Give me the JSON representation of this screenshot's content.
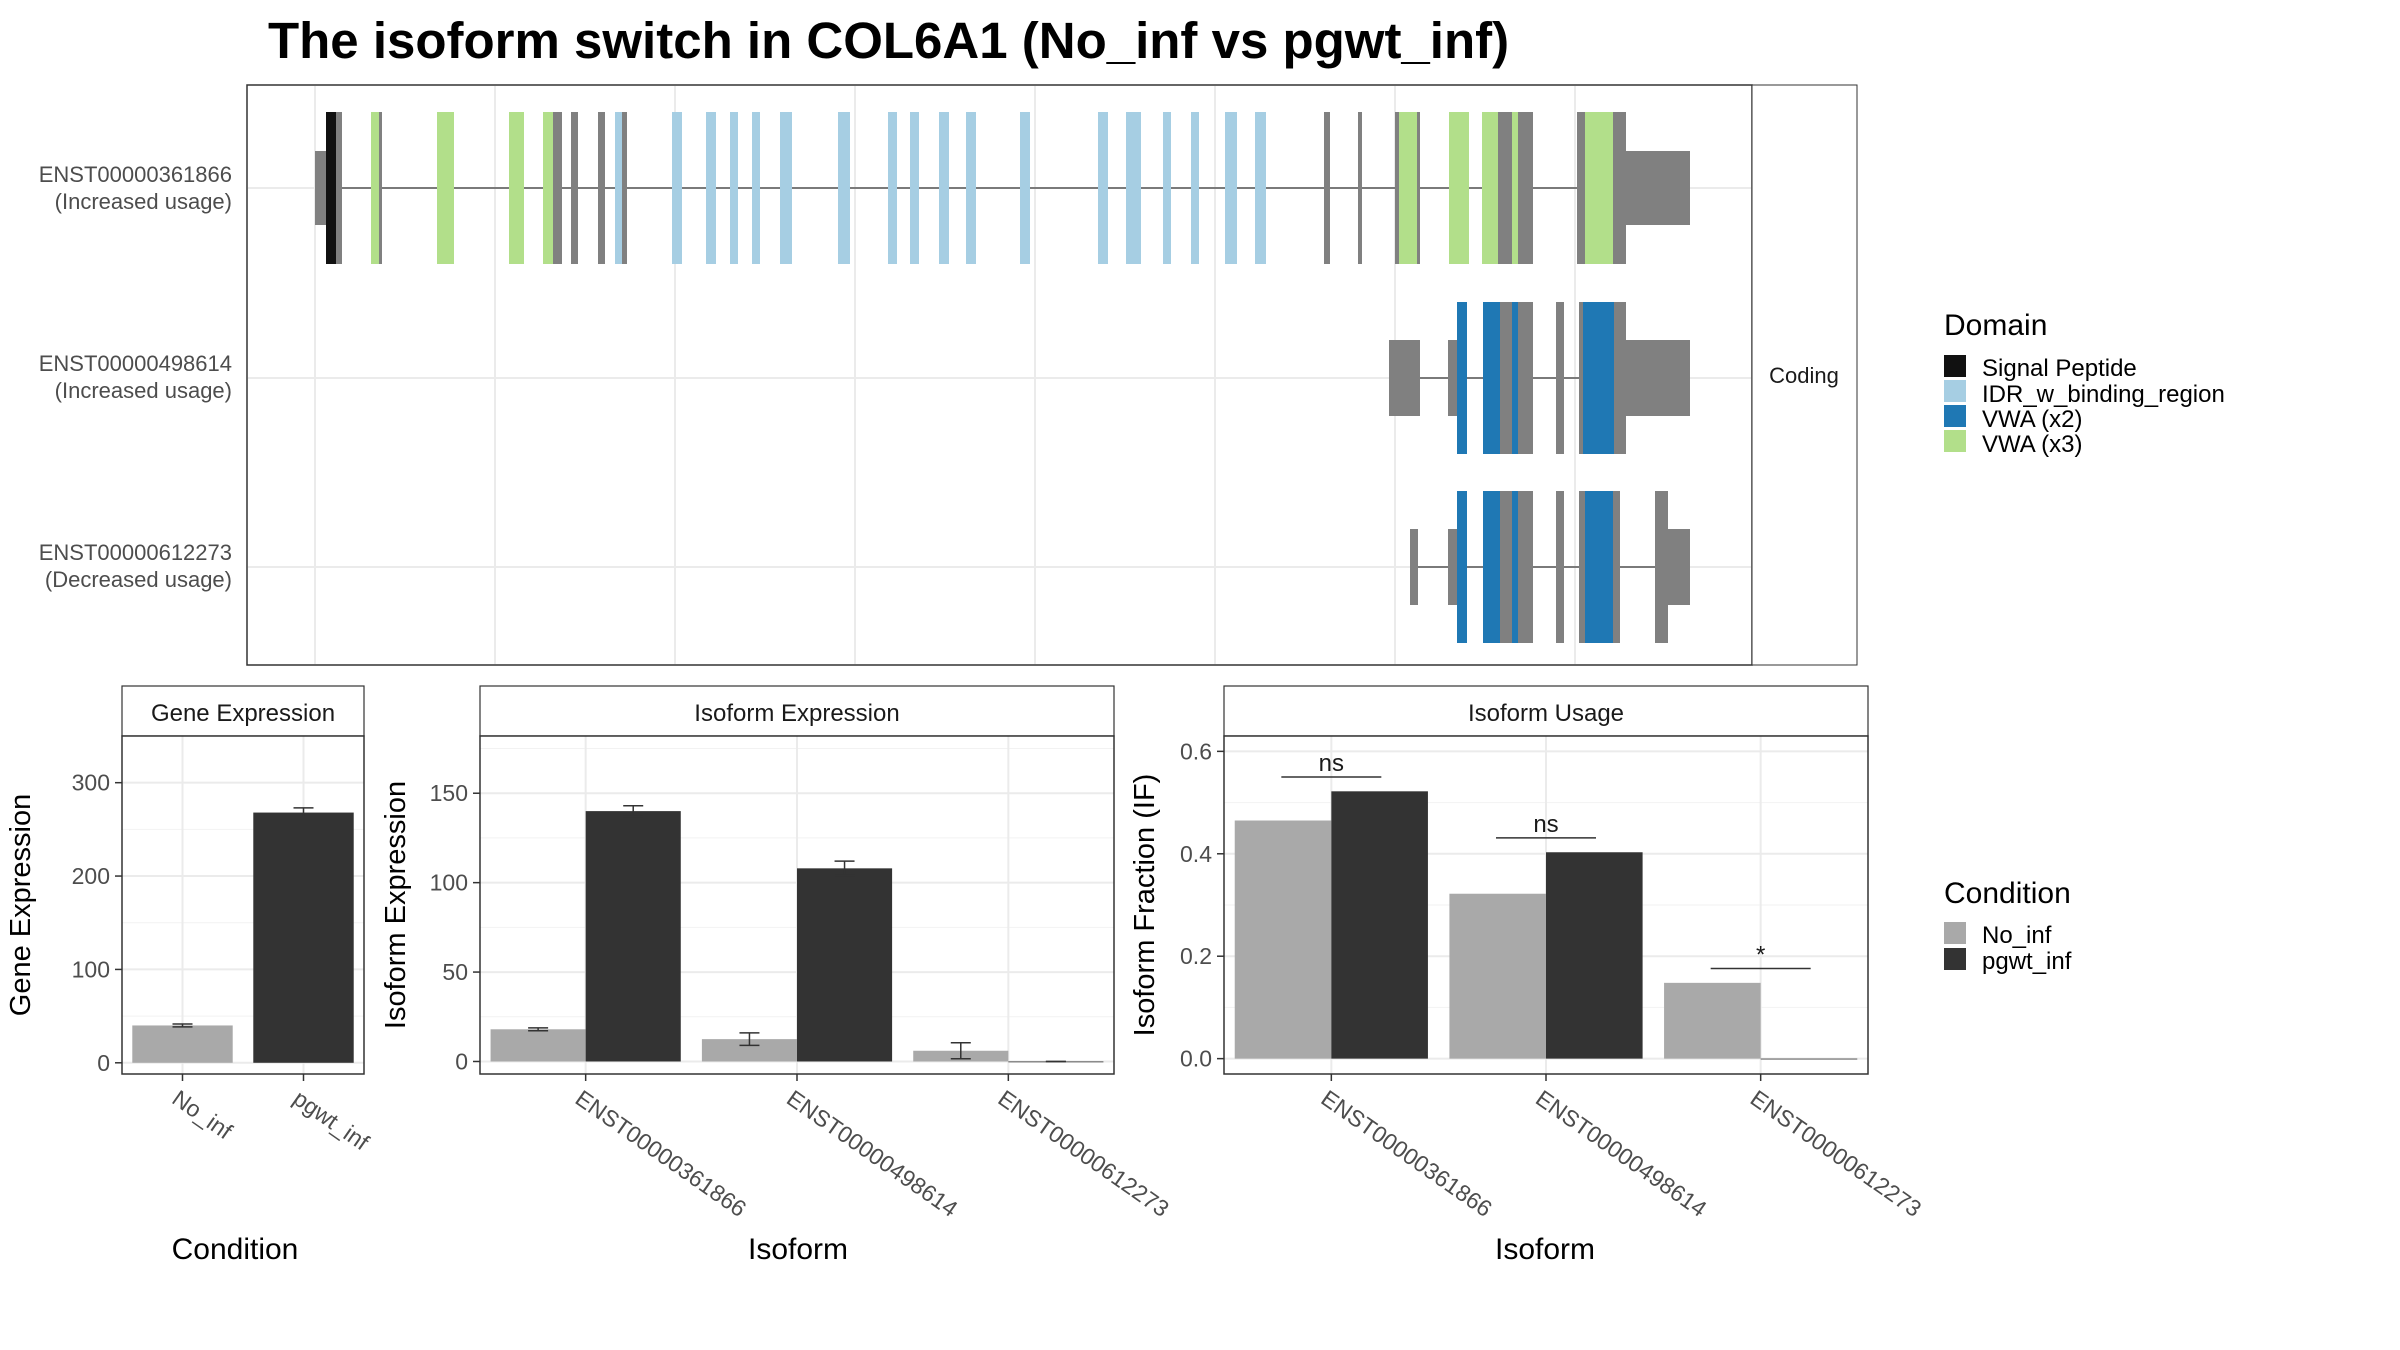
{
  "title": "The isoform switch in COL6A1 (No_inf vs pgwt_inf)",
  "transcript_panel": {
    "facet_label": "Coding",
    "isoforms": [
      {
        "id": "ENST00000361866",
        "status": "(Increased usage)"
      },
      {
        "id": "ENST00000498614",
        "status": "(Increased usage)"
      },
      {
        "id": "ENST00000612273",
        "status": "(Decreased usage)"
      }
    ]
  },
  "domain_legend": {
    "title": "Domain",
    "items": [
      {
        "label": "Signal Peptide",
        "color": "#111111"
      },
      {
        "label": "IDR_w_binding_region",
        "color": "#a6cee3"
      },
      {
        "label": "VWA (x2)",
        "color": "#1f78b4"
      },
      {
        "label": "VWA (x3)",
        "color": "#b2df8a"
      }
    ]
  },
  "condition_legend": {
    "title": "Condition",
    "items": [
      {
        "label": "No_inf",
        "color": "#a9a9a9"
      },
      {
        "label": "pgwt_inf",
        "color": "#333333"
      }
    ]
  },
  "chart_data": [
    {
      "type": "bar",
      "title": "Gene Expression",
      "xlabel": "Condition",
      "ylabel": "Gene Expression",
      "categories": [
        "No_inf",
        "pgwt_inf"
      ],
      "values": [
        40,
        268
      ],
      "errors": [
        1.5,
        5
      ],
      "colors": [
        "#a9a9a9",
        "#333333"
      ],
      "ylim": [
        -12,
        350
      ],
      "yticks": [
        0,
        100,
        200,
        300
      ],
      "grid": true
    },
    {
      "type": "bar",
      "title": "Isoform Expression",
      "xlabel": "Isoform",
      "ylabel": "Isoform Expression",
      "categories": [
        "ENST00000361866",
        "ENST00000498614",
        "ENST00000612273"
      ],
      "series": [
        {
          "name": "No_inf",
          "values": [
            18,
            12.5,
            6
          ],
          "errors": [
            0.8,
            3.5,
            4.5
          ]
        },
        {
          "name": "pgwt_inf",
          "values": [
            140,
            108,
            0
          ],
          "errors": [
            3,
            4,
            0
          ]
        }
      ],
      "ylim": [
        -7,
        182
      ],
      "yticks": [
        0,
        50,
        100,
        150
      ],
      "grid": true
    },
    {
      "type": "bar",
      "title": "Isoform Usage",
      "xlabel": "Isoform",
      "ylabel": "Isoform Fraction (IF)",
      "categories": [
        "ENST00000361866",
        "ENST00000498614",
        "ENST00000612273"
      ],
      "series": [
        {
          "name": "No_inf",
          "values": [
            0.465,
            0.322,
            0.148
          ]
        },
        {
          "name": "pgwt_inf",
          "values": [
            0.522,
            0.403,
            0
          ]
        }
      ],
      "significance": [
        "ns",
        "ns",
        "*"
      ],
      "ylim": [
        -0.03,
        0.63
      ],
      "yticks": [
        0.0,
        0.2,
        0.4,
        0.6
      ],
      "ytick_labels": [
        "0.0",
        "0.2",
        "0.4",
        "0.6"
      ],
      "grid": true
    }
  ]
}
